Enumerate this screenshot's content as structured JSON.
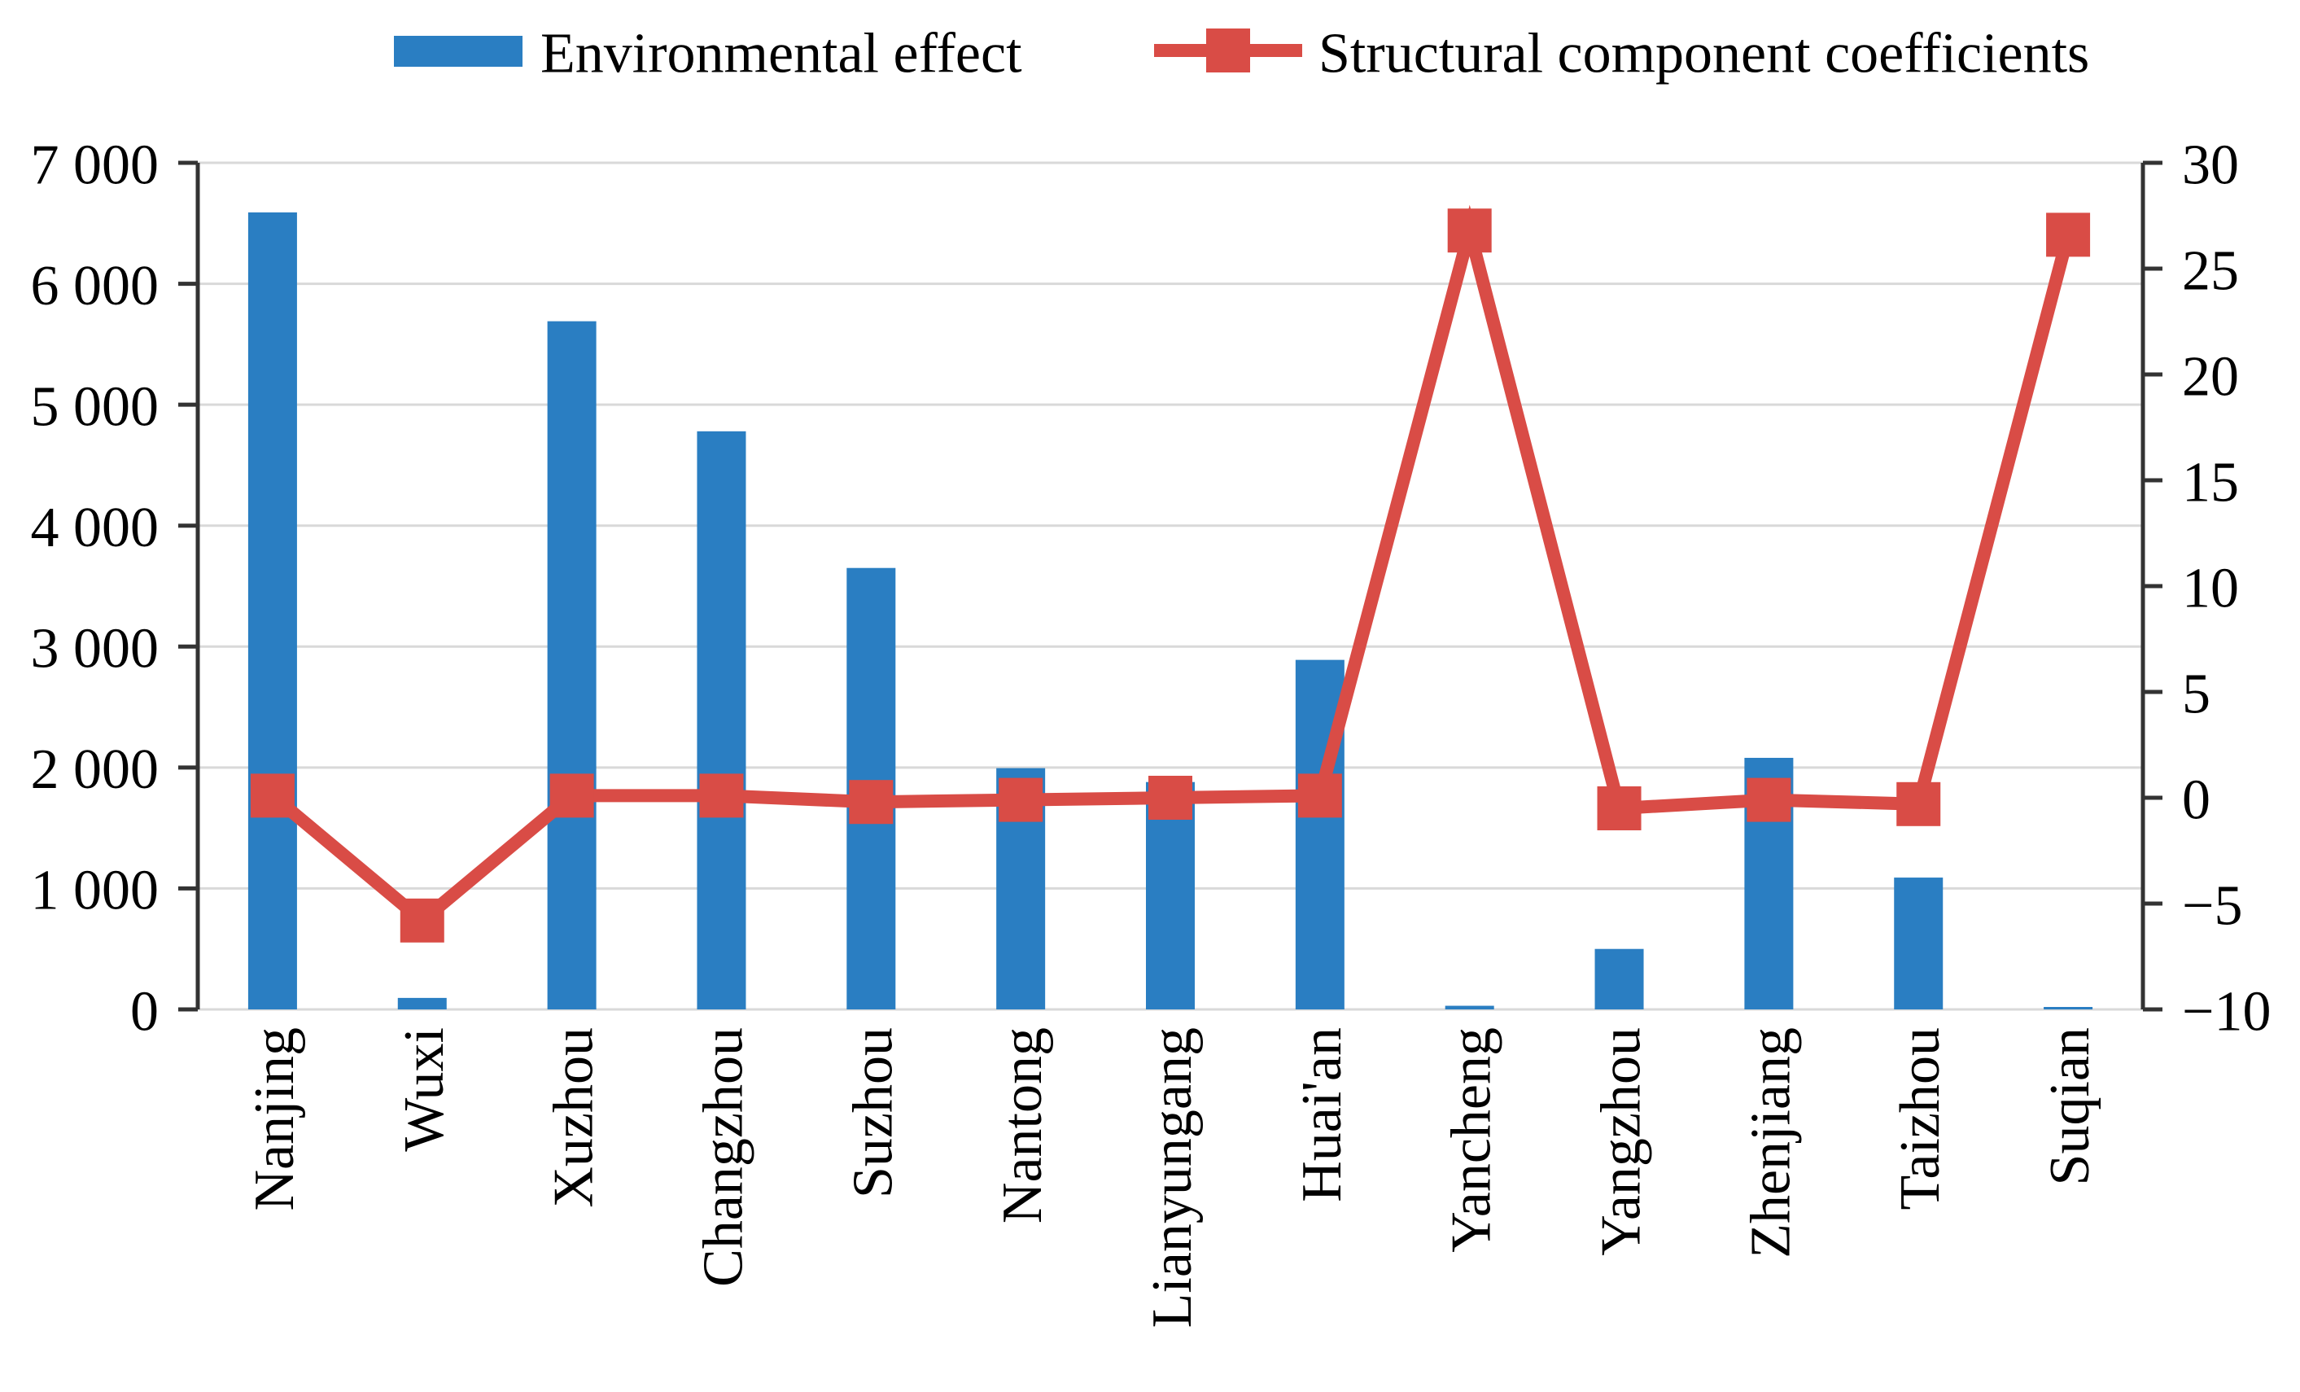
{
  "figure": {
    "background": "#ffffff",
    "legend": {
      "items": [
        {
          "label": "Environmental effect",
          "swatch": "bar",
          "color": "#2A7EC2"
        },
        {
          "label": "Structural component coefficients",
          "swatch": "line-square-marker",
          "color": "#D94C46"
        }
      ]
    }
  },
  "chart_data": {
    "type": "bar+line dual-axis combo",
    "categories": [
      "Nanjing",
      "Wuxi",
      "Xuzhou",
      "Changzhou",
      "Suzhou",
      "Nantong",
      "Lianyungang",
      "Huai'an",
      "Yancheng",
      "Yangzhou",
      "Zhenjiang",
      "Taizhou",
      "Suqian"
    ],
    "series": [
      {
        "name": "Environmental effect",
        "type": "bar",
        "axis": "left",
        "color": "#2A7EC2",
        "values": [
          6590,
          95,
          5690,
          4780,
          3650,
          1995,
          1880,
          2890,
          30,
          500,
          2080,
          1090,
          20
        ]
      },
      {
        "name": "Structural component coefficients",
        "type": "line",
        "axis": "right",
        "color": "#D94C46",
        "marker": "square",
        "values": [
          0.1,
          -5.8,
          0.1,
          0.1,
          -0.2,
          -0.1,
          0.0,
          0.1,
          26.8,
          -0.5,
          -0.1,
          -0.3,
          26.6
        ]
      }
    ],
    "left_axis": {
      "range": [
        0,
        7000
      ],
      "tick_step": 1000,
      "ticks": [
        {
          "value": 0,
          "label": "0"
        },
        {
          "value": 1000,
          "label": "1 000"
        },
        {
          "value": 2000,
          "label": "2 000"
        },
        {
          "value": 3000,
          "label": "3 000"
        },
        {
          "value": 4000,
          "label": "4 000"
        },
        {
          "value": 5000,
          "label": "5 000"
        },
        {
          "value": 6000,
          "label": "6 000"
        },
        {
          "value": 7000,
          "label": "7 000"
        }
      ]
    },
    "right_axis": {
      "range": [
        -10,
        30
      ],
      "tick_step": 5,
      "ticks": [
        {
          "value": -10,
          "label": "−10"
        },
        {
          "value": -5,
          "label": "−5"
        },
        {
          "value": 0,
          "label": "0"
        },
        {
          "value": 5,
          "label": "5"
        },
        {
          "value": 10,
          "label": "10"
        },
        {
          "value": 15,
          "label": "15"
        },
        {
          "value": 20,
          "label": "20"
        },
        {
          "value": 25,
          "label": "25"
        },
        {
          "value": 30,
          "label": "30"
        }
      ]
    },
    "grid": {
      "horizontal": true,
      "color": "#D9D9D9"
    },
    "axis_color": "#333333",
    "text_color": "#000000",
    "x_tick_label_rotation": -90
  }
}
